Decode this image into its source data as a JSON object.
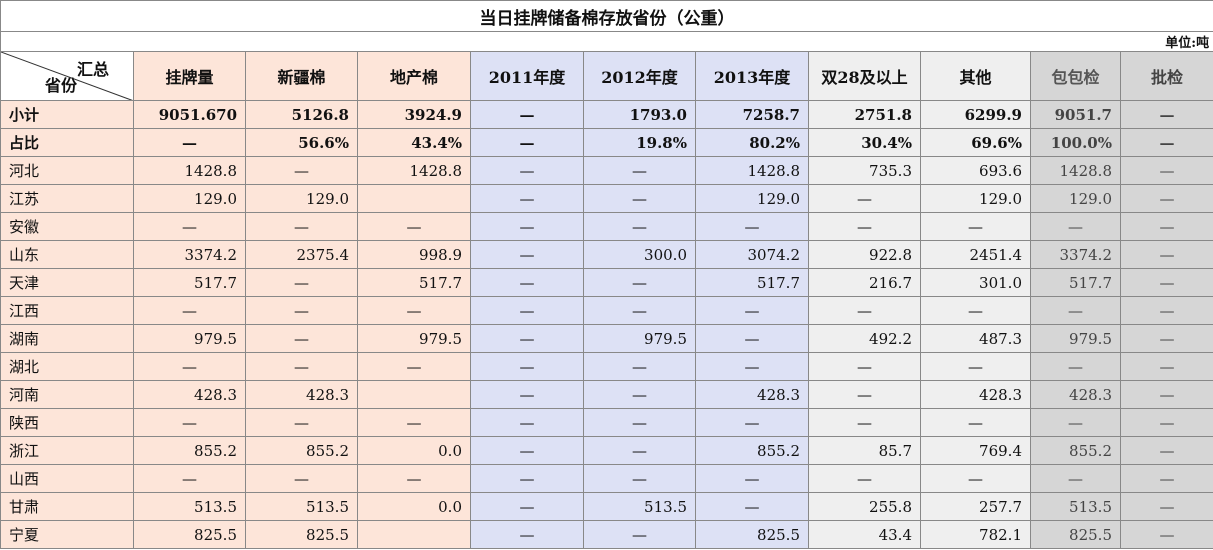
{
  "title": "当日挂牌储备棉存放省份（公重）",
  "unit": "单位:吨",
  "header": {
    "corner_top": "汇总",
    "corner_bottom": "省份",
    "columns": [
      "挂牌量",
      "新疆棉",
      "地产棉",
      "2011年度",
      "2012年度",
      "2013年度",
      "双28及以上",
      "其他",
      "包包检",
      "批检"
    ]
  },
  "table": {
    "rows": [
      [
        "小计",
        "9051.670",
        "5126.8",
        "3924.9",
        "—",
        "1793.0",
        "7258.7",
        "2751.8",
        "6299.9",
        "9051.7",
        "—"
      ],
      [
        "占比",
        "—",
        "56.6%",
        "43.4%",
        "—",
        "19.8%",
        "80.2%",
        "30.4%",
        "69.6%",
        "100.0%",
        "—"
      ],
      [
        "河北",
        "1428.8",
        "—",
        "1428.8",
        "—",
        "—",
        "1428.8",
        "735.3",
        "693.6",
        "1428.8",
        "—"
      ],
      [
        "江苏",
        "129.0",
        "129.0",
        null,
        "—",
        "—",
        "129.0",
        "—",
        "129.0",
        "129.0",
        "—"
      ],
      [
        "安徽",
        "—",
        "—",
        "—",
        "—",
        "—",
        "—",
        "—",
        "—",
        "—",
        "—"
      ],
      [
        "山东",
        "3374.2",
        "2375.4",
        "998.9",
        "—",
        "300.0",
        "3074.2",
        "922.8",
        "2451.4",
        "3374.2",
        "—"
      ],
      [
        "天津",
        "517.7",
        "—",
        "517.7",
        "—",
        "—",
        "517.7",
        "216.7",
        "301.0",
        "517.7",
        "—"
      ],
      [
        "江西",
        "—",
        "—",
        "—",
        "—",
        "—",
        "—",
        "—",
        "—",
        "—",
        "—"
      ],
      [
        "湖南",
        "979.5",
        "—",
        "979.5",
        "—",
        "979.5",
        "—",
        "492.2",
        "487.3",
        "979.5",
        "—"
      ],
      [
        "湖北",
        "—",
        "—",
        "—",
        "—",
        "—",
        "—",
        "—",
        "—",
        "—",
        "—"
      ],
      [
        "河南",
        "428.3",
        "428.3",
        null,
        "—",
        "—",
        "428.3",
        "—",
        "428.3",
        "428.3",
        "—"
      ],
      [
        "陕西",
        "—",
        "—",
        "—",
        "—",
        "—",
        "—",
        "—",
        "—",
        "—",
        "—"
      ],
      [
        "浙江",
        "855.2",
        "855.2",
        "0.0",
        "—",
        "—",
        "855.2",
        "85.7",
        "769.4",
        "855.2",
        "—"
      ],
      [
        "山西",
        "—",
        "—",
        "—",
        "—",
        "—",
        "—",
        "—",
        "—",
        "—",
        "—"
      ],
      [
        "甘肃",
        "513.5",
        "513.5",
        "0.0",
        "—",
        "513.5",
        "—",
        "255.8",
        "257.7",
        "513.5",
        "—"
      ],
      [
        "宁夏",
        "825.5",
        "825.5",
        null,
        "—",
        "—",
        "825.5",
        "43.4",
        "782.1",
        "825.5",
        "—"
      ]
    ]
  }
}
